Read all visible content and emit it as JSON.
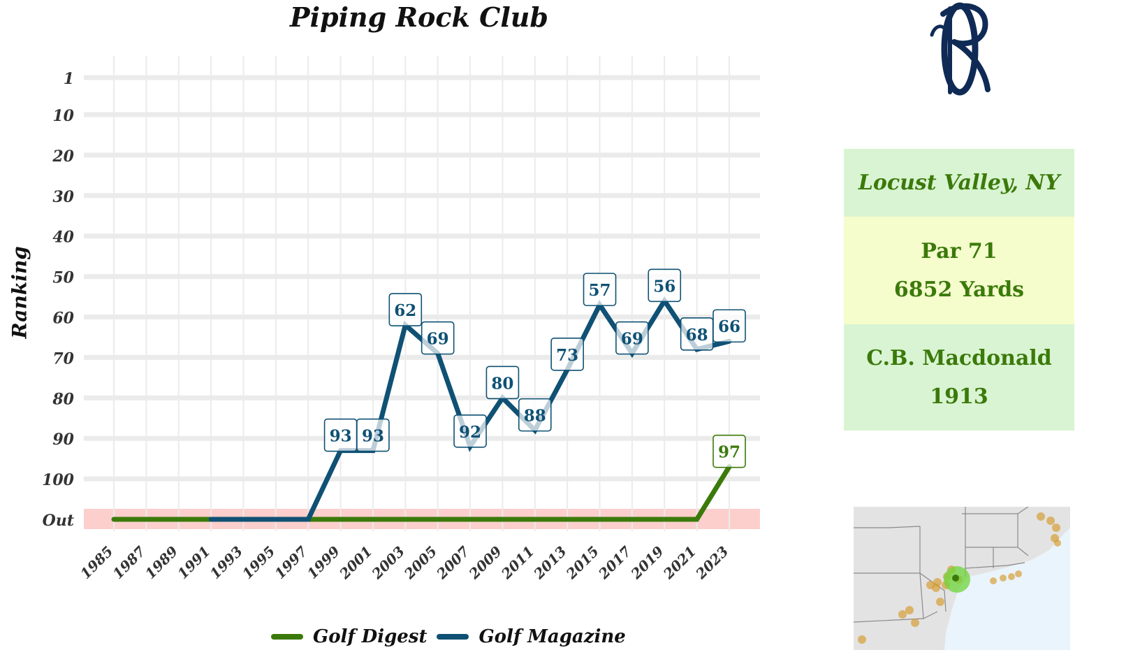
{
  "title": "Piping Rock Club",
  "ylabel": "Ranking",
  "colors": {
    "golf_digest": "#3b7a0a",
    "golf_magazine": "#0f5174",
    "out_band": "#fccfcc",
    "grid": "#ebebeb"
  },
  "legend": [
    {
      "name": "Golf Digest",
      "color": "#3b7a0a"
    },
    {
      "name": "Golf Magazine",
      "color": "#0f5174"
    }
  ],
  "info": {
    "location": "Locust Valley, NY",
    "par": "Par 71",
    "yards": "6852 Yards",
    "architect": "C.B. Macdonald",
    "year": "1913"
  },
  "logo_icon": "pr-monogram-logo",
  "map_icon": "northeast-us-locator-map",
  "chart_data": {
    "type": "line",
    "title": "Piping Rock Club",
    "ylabel": "Ranking",
    "xlabel": "",
    "y_tick_labels": [
      "1",
      "10",
      "20",
      "30",
      "40",
      "50",
      "60",
      "70",
      "80",
      "90",
      "100",
      "Out"
    ],
    "y_tick_values": [
      1,
      10,
      20,
      30,
      40,
      50,
      60,
      70,
      80,
      90,
      100,
      110
    ],
    "x_ticks": [
      1985,
      1987,
      1989,
      1991,
      1993,
      1995,
      1997,
      1999,
      2001,
      2003,
      2005,
      2007,
      2009,
      2011,
      2013,
      2015,
      2017,
      2019,
      2021,
      2023
    ],
    "xlim": [
      1985,
      2023
    ],
    "ylim_reversed": [
      1,
      110
    ],
    "out_value": 110,
    "grid": true,
    "legend_position": "bottom",
    "series": [
      {
        "name": "Golf Digest",
        "x": [
          1985,
          2021,
          2023
        ],
        "y": [
          110,
          110,
          97
        ],
        "labels": [
          {
            "x": 2023,
            "text": "97"
          }
        ]
      },
      {
        "name": "Golf Magazine",
        "x": [
          1991,
          1997,
          1999,
          2001,
          2003,
          2005,
          2007,
          2009,
          2011,
          2013,
          2015,
          2017,
          2019,
          2021,
          2023
        ],
        "y": [
          110,
          110,
          93,
          93,
          62,
          69,
          92,
          80,
          88,
          73,
          57,
          69,
          56,
          68,
          66
        ],
        "labels": [
          {
            "x": 1999,
            "text": "93"
          },
          {
            "x": 2001,
            "text": "93"
          },
          {
            "x": 2003,
            "text": "62"
          },
          {
            "x": 2005,
            "text": "69"
          },
          {
            "x": 2007,
            "text": "92"
          },
          {
            "x": 2009,
            "text": "80"
          },
          {
            "x": 2011,
            "text": "88"
          },
          {
            "x": 2013,
            "text": "73"
          },
          {
            "x": 2015,
            "text": "57"
          },
          {
            "x": 2017,
            "text": "69"
          },
          {
            "x": 2019,
            "text": "56"
          },
          {
            "x": 2021,
            "text": "68"
          },
          {
            "x": 2023,
            "text": "66"
          }
        ]
      }
    ]
  }
}
